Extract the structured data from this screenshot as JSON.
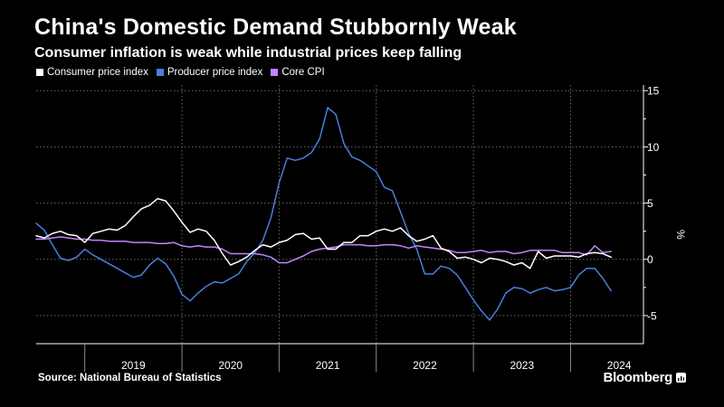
{
  "title": "China's Domestic Demand Stubbornly Weak",
  "subtitle": "Consumer inflation is weak while industrial prices keep falling",
  "source": "Source: National Bureau of Statistics",
  "brand": "Bloomberg",
  "colors": {
    "background": "#000000",
    "cpi": "#ffffff",
    "ppi": "#4a7fdc",
    "core": "#c084fc"
  },
  "chart_data": {
    "type": "line",
    "title": "China's Domestic Demand Stubbornly Weak",
    "subtitle": "Consumer inflation is weak while industrial prices keep falling",
    "xlabel": "",
    "ylabel": "%",
    "ylim": [
      -7.5,
      15.5
    ],
    "yticks": [
      -5,
      0,
      5,
      10,
      15
    ],
    "xlim": [
      2018.5,
      2024.75
    ],
    "xticks": [
      "2019",
      "2020",
      "2021",
      "2022",
      "2023",
      "2024"
    ],
    "grid": true,
    "legend_position": "top-left",
    "series": [
      {
        "name": "Consumer price index",
        "color": "#ffffff",
        "x_start": 2018.5,
        "x_step": 0.08333,
        "values": [
          2.1,
          1.9,
          2.3,
          2.5,
          2.2,
          2.1,
          1.5,
          2.3,
          2.5,
          2.7,
          2.6,
          3.0,
          3.8,
          4.5,
          4.8,
          5.4,
          5.2,
          4.3,
          3.3,
          2.4,
          2.7,
          2.5,
          1.7,
          0.5,
          -0.5,
          -0.2,
          0.2,
          0.8,
          1.3,
          1.1,
          1.5,
          1.7,
          2.2,
          2.3,
          1.8,
          1.9,
          0.9,
          0.9,
          1.5,
          1.5,
          2.1,
          2.1,
          2.5,
          2.7,
          2.5,
          2.8,
          2.1,
          1.6,
          1.8,
          2.1,
          1.0,
          0.7,
          0.1,
          0.2,
          0.0,
          -0.3,
          0.1,
          0.0,
          -0.2,
          -0.5,
          -0.3,
          -0.8,
          0.7,
          0.1,
          0.3,
          0.3,
          0.3,
          0.2,
          0.5,
          0.6,
          0.5,
          0.2
        ]
      },
      {
        "name": "Producer price index",
        "color": "#4a7fdc",
        "x_start": 2018.5,
        "x_step": 0.08333,
        "values": [
          3.2,
          2.6,
          1.3,
          0.1,
          -0.1,
          0.2,
          0.9,
          0.4,
          0.0,
          -0.4,
          -0.8,
          -1.2,
          -1.6,
          -1.4,
          -0.5,
          0.1,
          -0.4,
          -1.5,
          -3.1,
          -3.7,
          -3.0,
          -2.4,
          -2.0,
          -2.1,
          -1.7,
          -1.3,
          -0.2,
          0.6,
          1.7,
          3.7,
          6.8,
          9.0,
          8.8,
          9.0,
          9.5,
          10.7,
          13.5,
          12.9,
          10.3,
          9.1,
          8.8,
          8.3,
          7.8,
          6.4,
          6.1,
          4.2,
          2.3,
          0.9,
          -1.3,
          -1.3,
          -0.6,
          -0.8,
          -1.4,
          -2.5,
          -3.6,
          -4.6,
          -5.4,
          -4.4,
          -3.0,
          -2.5,
          -2.6,
          -3.0,
          -2.7,
          -2.5,
          -2.8,
          -2.7,
          -2.5,
          -1.4,
          -0.8,
          -0.8,
          -1.7,
          -2.8
        ]
      },
      {
        "name": "Core CPI",
        "color": "#c084fc",
        "x_start": 2018.5,
        "x_step": 0.08333,
        "values": [
          1.8,
          1.8,
          1.9,
          2.0,
          1.9,
          1.8,
          1.8,
          1.7,
          1.7,
          1.6,
          1.6,
          1.6,
          1.5,
          1.5,
          1.5,
          1.4,
          1.4,
          1.5,
          1.2,
          1.1,
          1.2,
          1.1,
          1.1,
          0.9,
          0.5,
          0.5,
          0.5,
          0.5,
          0.4,
          0.2,
          -0.3,
          -0.3,
          0.0,
          0.3,
          0.7,
          0.9,
          1.0,
          1.1,
          1.3,
          1.3,
          1.3,
          1.2,
          1.2,
          1.3,
          1.3,
          1.2,
          1.0,
          1.2,
          1.1,
          1.0,
          0.9,
          0.8,
          0.6,
          0.6,
          0.7,
          0.8,
          0.6,
          0.7,
          0.7,
          0.5,
          0.6,
          0.8,
          0.8,
          0.8,
          0.8,
          0.6,
          0.6,
          0.6,
          0.4,
          1.2,
          0.6,
          0.7
        ]
      }
    ]
  }
}
